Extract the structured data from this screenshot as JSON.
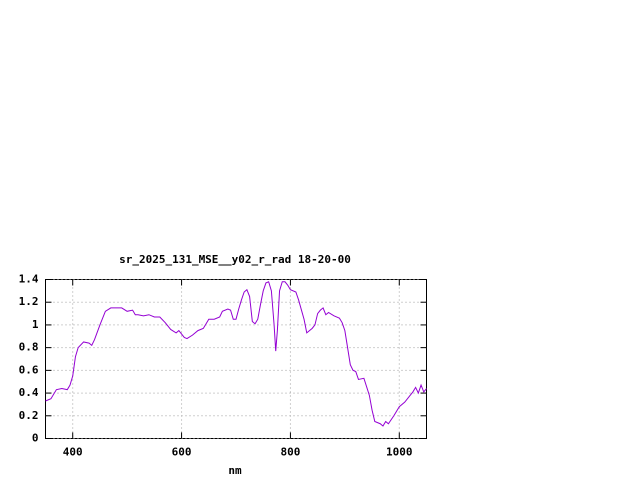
{
  "chart_data": {
    "type": "line",
    "title": "sr_2025_131_MSE__y02_r_rad 18-20-00",
    "x_label": "nm",
    "x": [
      350,
      360,
      370,
      380,
      390,
      395,
      400,
      405,
      410,
      420,
      430,
      435,
      440,
      450,
      460,
      470,
      480,
      490,
      500,
      510,
      515,
      520,
      530,
      540,
      550,
      560,
      570,
      580,
      590,
      595,
      605,
      610,
      620,
      630,
      640,
      650,
      660,
      670,
      675,
      685,
      690,
      695,
      700,
      705,
      710,
      715,
      720,
      725,
      730,
      735,
      740,
      745,
      750,
      755,
      760,
      765,
      770,
      773,
      776,
      780,
      785,
      790,
      795,
      800,
      810,
      815,
      825,
      830,
      840,
      845,
      850,
      855,
      860,
      865,
      870,
      880,
      890,
      895,
      900,
      905,
      910,
      915,
      920,
      925,
      935,
      945,
      950,
      955,
      965,
      970,
      975,
      980,
      990,
      1000,
      1010,
      1020,
      1025,
      1030,
      1035,
      1040,
      1045,
      1050
    ],
    "series": [
      {
        "color": "#9400d3",
        "values": [
          0.33,
          0.35,
          0.43,
          0.44,
          0.43,
          0.47,
          0.55,
          0.72,
          0.8,
          0.85,
          0.84,
          0.82,
          0.87,
          1.0,
          1.12,
          1.15,
          1.15,
          1.15,
          1.12,
          1.13,
          1.09,
          1.09,
          1.08,
          1.09,
          1.07,
          1.07,
          1.02,
          0.96,
          0.93,
          0.95,
          0.89,
          0.88,
          0.91,
          0.95,
          0.97,
          1.05,
          1.05,
          1.07,
          1.12,
          1.14,
          1.13,
          1.05,
          1.05,
          1.14,
          1.22,
          1.29,
          1.31,
          1.25,
          1.03,
          1.01,
          1.05,
          1.18,
          1.3,
          1.37,
          1.38,
          1.3,
          1.0,
          0.77,
          0.95,
          1.3,
          1.38,
          1.38,
          1.35,
          1.31,
          1.29,
          1.22,
          1.05,
          0.93,
          0.97,
          1.0,
          1.1,
          1.13,
          1.15,
          1.09,
          1.11,
          1.08,
          1.06,
          1.02,
          0.95,
          0.8,
          0.65,
          0.6,
          0.59,
          0.52,
          0.53,
          0.38,
          0.25,
          0.15,
          0.13,
          0.11,
          0.15,
          0.13,
          0.2,
          0.28,
          0.32,
          0.38,
          0.41,
          0.45,
          0.4,
          0.47,
          0.41,
          0.44
        ]
      }
    ],
    "xlim": [
      350,
      1050
    ],
    "xticks": [
      400,
      600,
      800,
      1000
    ],
    "ylim": [
      0,
      1.4
    ],
    "yticks": [
      0,
      0.2,
      0.4,
      0.6,
      0.8,
      1,
      1.2,
      1.4
    ],
    "grid": true
  }
}
